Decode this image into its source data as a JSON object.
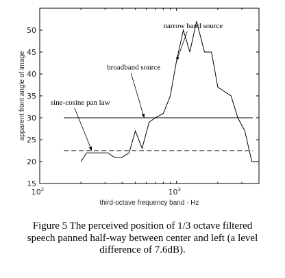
{
  "chart_data": {
    "type": "line",
    "x_scale": "log",
    "xlim": [
      100,
      4000
    ],
    "ylim": [
      15,
      55
    ],
    "xlabel": "third-octave frequency band - Hz",
    "ylabel": "apparent front angle of image",
    "x_ticks": [
      {
        "value": 100,
        "base": "10",
        "exp": "2"
      },
      {
        "value": 1000,
        "base": "10",
        "exp": "3"
      }
    ],
    "y_ticks": [
      15,
      20,
      25,
      30,
      35,
      40,
      45,
      50
    ],
    "series": [
      {
        "name": "narrow band source",
        "style": "solid",
        "points": [
          [
            200,
            20
          ],
          [
            220,
            22
          ],
          [
            250,
            22
          ],
          [
            280,
            22
          ],
          [
            315,
            22
          ],
          [
            350,
            21
          ],
          [
            400,
            21
          ],
          [
            450,
            22
          ],
          [
            500,
            27
          ],
          [
            560,
            23
          ],
          [
            630,
            29
          ],
          [
            700,
            30
          ],
          [
            800,
            31
          ],
          [
            900,
            35
          ],
          [
            1000,
            43
          ],
          [
            1120,
            50
          ],
          [
            1250,
            45
          ],
          [
            1400,
            52
          ],
          [
            1600,
            45
          ],
          [
            1800,
            45
          ],
          [
            2000,
            37
          ],
          [
            2500,
            35
          ],
          [
            2800,
            30
          ],
          [
            3150,
            27
          ],
          [
            3550,
            20
          ],
          [
            4000,
            20
          ]
        ]
      },
      {
        "name": "broadband source",
        "style": "solid",
        "points": [
          [
            150,
            30
          ],
          [
            3600,
            30
          ]
        ]
      },
      {
        "name": "sine-cosine pan law",
        "style": "dashed",
        "points": [
          [
            150,
            22.5
          ],
          [
            3600,
            22.5
          ]
        ]
      }
    ],
    "annotations": [
      {
        "text": "narrow band source",
        "at": [
          800,
          50.5
        ],
        "arrow_to": [
          1000,
          43
        ]
      },
      {
        "text": "broadband source",
        "at": [
          310,
          41
        ],
        "arrow_to": [
          580,
          30
        ]
      },
      {
        "text": "sine-cosine pan law",
        "at": [
          120,
          33
        ],
        "arrow_to": [
          240,
          22.5
        ]
      }
    ]
  },
  "caption": {
    "line1": "Figure 5  The perceived position of 1/3 octave filtered",
    "line2": "speech panned half-way between center and left (a level",
    "line3": "difference of 7.6dB)."
  }
}
